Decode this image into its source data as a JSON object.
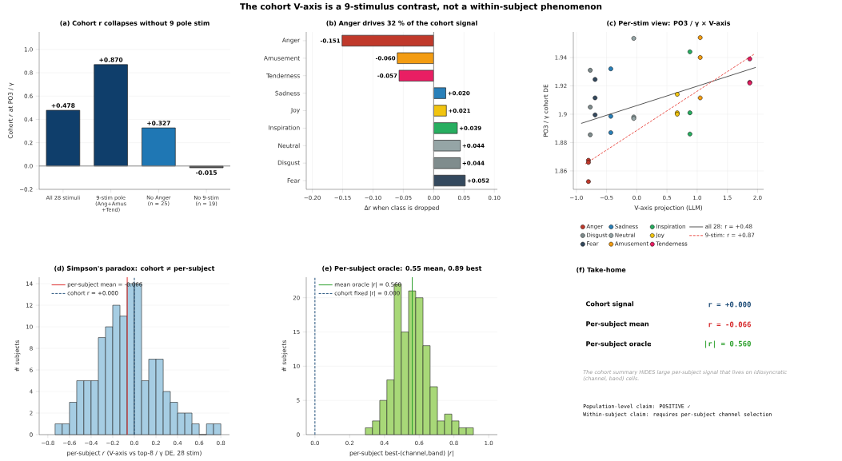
{
  "chart_data": [
    {
      "type": "other",
      "title": "The cohort V-axis is a 9-stimulus contrast, not a within-subject phenomenon"
    },
    {
      "type": "bar",
      "title": "(a)  Cohort r collapses without 9 pole stim",
      "ylabel": "Cohort *r* at PO3 / γ",
      "categories": [
        "All 28 stimuli",
        "9-stim pole (Ang+Amus +Tend)",
        "No Anger (n = 25)",
        "No 9-stim (n = 19)"
      ],
      "values": [
        0.478,
        0.87,
        0.327,
        -0.015
      ],
      "colors": [
        "#0f3e6b",
        "#0f3e6b",
        "#1f77b4",
        "#555555"
      ],
      "value_labels": [
        "+0.478",
        "+0.870",
        "+0.327",
        "-0.015"
      ],
      "ylim": [
        -0.2,
        1.15
      ],
      "yticks": [
        {
          "value": -0.2,
          "label": "−0.2"
        },
        {
          "value": 0,
          "label": "0.0"
        },
        {
          "value": 0.2,
          "label": "0.2"
        },
        {
          "value": 0.4,
          "label": "0.4"
        },
        {
          "value": 0.6,
          "label": "0.6"
        },
        {
          "value": 0.8,
          "label": "0.8"
        },
        {
          "value": 1.0,
          "label": "1.0"
        }
      ],
      "grid": "y",
      "ref_lines": [
        {
          "axis": "y",
          "value": 0,
          "color": "#888888"
        }
      ]
    },
    {
      "type": "bar",
      "orientation": "horizontal",
      "title": "(b)  Anger drives 32 % of the cohort signal",
      "xlabel": "Δr  when class is dropped",
      "categories": [
        "Anger",
        "Amusement",
        "Tenderness",
        "Sadness",
        "Joy",
        "Inspiration",
        "Neutral",
        "Disgust",
        "Fear"
      ],
      "values": [
        -0.151,
        -0.06,
        -0.057,
        0.02,
        0.021,
        0.039,
        0.044,
        0.044,
        0.052
      ],
      "colors": [
        "#c0392b",
        "#f39c12",
        "#e91e63",
        "#2980b9",
        "#f1c40f",
        "#27ae60",
        "#95a5a6",
        "#7f8c8d",
        "#34495e"
      ],
      "value_labels": [
        "-0.151",
        "-0.060",
        "-0.057",
        "+0.020",
        "+0.021",
        "+0.039",
        "+0.044",
        "+0.044",
        "+0.052"
      ],
      "xlim": [
        -0.21,
        0.105
      ],
      "xticks": [
        {
          "value": -0.2,
          "label": "−0.20"
        },
        {
          "value": -0.15,
          "label": "−0.15"
        },
        {
          "value": -0.1,
          "label": "−0.10"
        },
        {
          "value": -0.05,
          "label": "−0.05"
        },
        {
          "value": 0,
          "label": "0.00"
        },
        {
          "value": 0.05,
          "label": "0.05"
        },
        {
          "value": 0.1,
          "label": "0.10"
        }
      ],
      "grid": "x",
      "ref_lines": [
        {
          "axis": "x",
          "value": 0,
          "color": "#888888"
        }
      ]
    },
    {
      "type": "scatter",
      "title": "(c)  Per-stim view: PO3 / γ × V-axis",
      "xlabel": "V-axis projection  (LLM)",
      "ylabel": "PO3 / γ  cohort DE",
      "grid": true,
      "legend": "bottom",
      "xlim": [
        -1.05,
        2.1
      ],
      "ylim": [
        1.847,
        1.958
      ],
      "xticks": [
        {
          "value": -1.0,
          "label": "−1.0"
        },
        {
          "value": -0.5,
          "label": "−0.5"
        },
        {
          "value": 0,
          "label": "0.0"
        },
        {
          "value": 0.5,
          "label": "0.5"
        },
        {
          "value": 1.0,
          "label": "1.0"
        },
        {
          "value": 1.5,
          "label": "1.5"
        },
        {
          "value": 2.0,
          "label": "2.0"
        }
      ],
      "yticks": [
        1.86,
        1.88,
        1.9,
        1.92,
        1.94
      ],
      "series": [
        {
          "name": "Anger",
          "marker": "circle",
          "color": "#c0392b",
          "x": [
            -0.8,
            -0.8,
            -0.8
          ],
          "values": [
            1.8675,
            1.866,
            1.8525
          ]
        },
        {
          "name": "Disgust",
          "marker": "circle",
          "color": "#7f8c8d",
          "x": [
            -0.77,
            -0.77,
            -0.77
          ],
          "values": [
            1.931,
            1.905,
            1.8855
          ]
        },
        {
          "name": "Fear",
          "marker": "circle",
          "color": "#34495e",
          "x": [
            -0.69,
            -0.69,
            -0.69
          ],
          "values": [
            1.9245,
            1.9115,
            1.8995
          ]
        },
        {
          "name": "Sadness",
          "marker": "circle",
          "color": "#2980b9",
          "x": [
            -0.43,
            -0.43,
            -0.43
          ],
          "values": [
            1.932,
            1.8985,
            1.887
          ]
        },
        {
          "name": "Neutral",
          "marker": "circle",
          "color": "#95a5a6",
          "x": [
            -0.05,
            -0.05,
            -0.05
          ],
          "values": [
            1.9535,
            1.898,
            1.897
          ]
        },
        {
          "name": "Amusement",
          "marker": "circle",
          "color": "#f39c12",
          "x": [
            1.05,
            1.05,
            1.05
          ],
          "values": [
            1.954,
            1.94,
            1.9115
          ]
        },
        {
          "name": "Inspiration",
          "marker": "circle",
          "color": "#27ae60",
          "x": [
            0.88,
            0.88,
            0.88
          ],
          "values": [
            1.944,
            1.901,
            1.886
          ]
        },
        {
          "name": "Joy",
          "marker": "circle",
          "color": "#f1c40f",
          "x": [
            0.67,
            0.67,
            0.67
          ],
          "values": [
            1.914,
            1.901,
            1.9
          ]
        },
        {
          "name": "Tenderness",
          "marker": "circle",
          "color": "#e91e63",
          "x": [
            1.87,
            1.87,
            1.87
          ],
          "values": [
            1.939,
            1.9225,
            1.922
          ]
        },
        {
          "name": "all 28: r = +0.48",
          "type": "line",
          "marker": "none",
          "color": "#444444",
          "x": [
            -0.92,
            1.97
          ],
          "values": [
            1.8935,
            1.933
          ]
        },
        {
          "name": "9-stim: r = +0.87",
          "type": "line",
          "marker": "none",
          "line_style": "dashed",
          "color": "#e8413a",
          "x": [
            -0.85,
            1.95
          ],
          "values": [
            1.865,
            1.9425
          ]
        }
      ]
    },
    {
      "type": "histogram",
      "title": "(d)  Simpson's paradox: cohort ≠ per-subject",
      "xlabel": "per-subject  *r*  (V-axis vs top-8 / γ DE, 28 stim)",
      "ylabel": "# subjects",
      "color": "#a6cde3",
      "bins": [
        -0.733,
        -0.667,
        -0.6,
        -0.533,
        -0.467,
        -0.4,
        -0.333,
        -0.267,
        -0.2,
        -0.133,
        -0.067,
        0,
        0.067,
        0.133,
        0.2,
        0.267,
        0.333,
        0.4,
        0.467,
        0.533,
        0.6,
        0.667,
        0.733,
        0.8
      ],
      "values": [
        1,
        1,
        3,
        5,
        5,
        5,
        9,
        10,
        12,
        11,
        14,
        14,
        5,
        7,
        7,
        4,
        3,
        2,
        2,
        1,
        0,
        1,
        1
      ],
      "xlim": [
        -0.88,
        0.88
      ],
      "ylim": [
        0,
        14.6
      ],
      "xticks": [
        {
          "value": -0.8,
          "label": "−0.8"
        },
        {
          "value": -0.6,
          "label": "−0.6"
        },
        {
          "value": -0.4,
          "label": "−0.4"
        },
        {
          "value": -0.2,
          "label": "−0.2"
        },
        {
          "value": 0,
          "label": "0.0"
        },
        {
          "value": 0.2,
          "label": "0.2"
        },
        {
          "value": 0.4,
          "label": "0.4"
        },
        {
          "value": 0.6,
          "label": "0.6"
        },
        {
          "value": 0.8,
          "label": "0.8"
        }
      ],
      "yticks": [
        0,
        2,
        4,
        6,
        8,
        10,
        12,
        14
      ],
      "grid": "y",
      "legend": "top left",
      "ref_lines": [
        {
          "axis": "x",
          "value": -0.066,
          "label": "per-subject mean = -0.066",
          "color": "#e03030"
        },
        {
          "axis": "x",
          "value": 0,
          "label": "cohort r = +0.000",
          "color": "#1f4e79",
          "line_style": "dashed"
        }
      ]
    },
    {
      "type": "histogram",
      "title": "(e)  Per-subject oracle: 0.55 mean, 0.89 best",
      "xlabel": "per-subject  best-(channel,band)  |*r*|",
      "ylabel": "# subjects",
      "color": "#a8d878",
      "bins": [
        0.29,
        0.331,
        0.373,
        0.414,
        0.456,
        0.497,
        0.539,
        0.58,
        0.622,
        0.663,
        0.705,
        0.746,
        0.788,
        0.829,
        0.871,
        0.912
      ],
      "values": [
        1,
        2,
        5,
        8,
        22,
        15,
        21,
        20,
        13,
        7,
        2,
        3,
        2,
        1,
        1
      ],
      "xlim": [
        -0.05,
        1.05
      ],
      "ylim": [
        0,
        23
      ],
      "xticks": [
        {
          "value": 0,
          "label": "0.0"
        },
        {
          "value": 0.2,
          "label": "0.2"
        },
        {
          "value": 0.4,
          "label": "0.4"
        },
        {
          "value": 0.6,
          "label": "0.6"
        },
        {
          "value": 0.8,
          "label": "0.8"
        },
        {
          "value": 1.0,
          "label": "1.0"
        }
      ],
      "yticks": [
        0,
        5,
        10,
        15,
        20
      ],
      "grid": "y",
      "legend": "top left",
      "ref_lines": [
        {
          "axis": "x",
          "value": 0.56,
          "label": "mean oracle |r| = 0.560",
          "color": "#2ca02c"
        },
        {
          "axis": "x",
          "value": 0,
          "label": "cohort fixed |r| = 0.000",
          "color": "#1f4e79",
          "line_style": "dashed"
        }
      ]
    },
    {
      "type": "other",
      "title": "(f)  Take-home",
      "annotations": [
        "Cohort signal",
        "r = +0.000",
        "Per-subject mean",
        "r = -0.066",
        "Per-subject oracle",
        "|r| = 0.560",
        "The cohort summary HIDES large per-subject signal that lives on idiosyncratic (channel, band) cells.",
        "Population-level claim:  POSITIVE   ✓",
        "Within-subject claim:    requires per-subject channel selection"
      ]
    }
  ]
}
